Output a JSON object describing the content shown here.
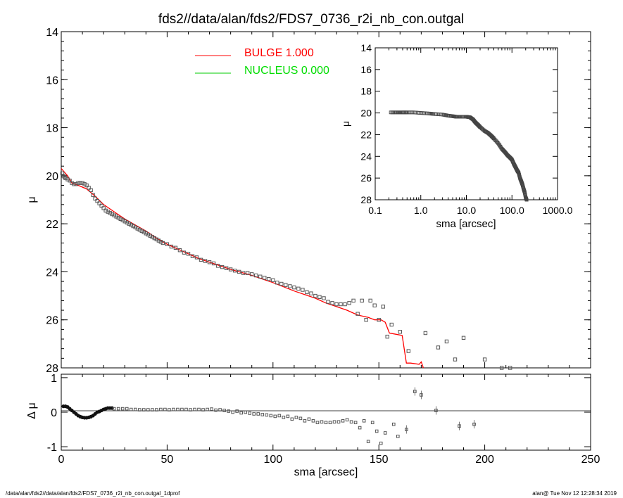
{
  "title": "fds2//data/alan/fds2/FDS7_0736_r2i_nb_con.outgal",
  "footer_left": "/data/alan/fds2//data/alan/fds2/FDS7_0736_r2i_nb_con.outgal_1dprof",
  "footer_right": "alan@  Tue Nov 12 12:28:34 2019",
  "colors": {
    "bulge": "#ff0000",
    "nucleus": "#00cc00",
    "data": "#555555"
  },
  "chart_data": [
    {
      "type": "scatter",
      "name": "main-profile",
      "xlim": [
        0,
        250
      ],
      "ylim": [
        28,
        14
      ],
      "y_inverted": true,
      "xticks": [
        0,
        50,
        100,
        150,
        200,
        250
      ],
      "yticks": [
        14,
        16,
        18,
        20,
        22,
        24,
        26,
        28
      ],
      "xlabel": "sma [arcsec]",
      "ylabel": "μ",
      "legend": [
        {
          "label": "BULGE  1.000",
          "color": "#ff0000"
        },
        {
          "label": "NUCLEUS  0.000",
          "color": "#00cc00"
        }
      ],
      "legend_position": "top-center",
      "data_points": [
        [
          0.5,
          19.9
        ],
        [
          1.0,
          20.0
        ],
        [
          1.5,
          20.05
        ],
        [
          2.0,
          20.1
        ],
        [
          3.0,
          20.15
        ],
        [
          4.0,
          20.2
        ],
        [
          5.0,
          20.3
        ],
        [
          6,
          20.35
        ],
        [
          7,
          20.35
        ],
        [
          8,
          20.3
        ],
        [
          9,
          20.3
        ],
        [
          10,
          20.3
        ],
        [
          11,
          20.35
        ],
        [
          12,
          20.4
        ],
        [
          13,
          20.5
        ],
        [
          14,
          20.6
        ],
        [
          15,
          20.8
        ],
        [
          16,
          20.95
        ],
        [
          17,
          21.05
        ],
        [
          18,
          21.15
        ],
        [
          19,
          21.25
        ],
        [
          20,
          21.35
        ],
        [
          21,
          21.45
        ],
        [
          22,
          21.5
        ],
        [
          23,
          21.55
        ],
        [
          24,
          21.6
        ],
        [
          25,
          21.65
        ],
        [
          26,
          21.7
        ],
        [
          27,
          21.75
        ],
        [
          28,
          21.8
        ],
        [
          29,
          21.85
        ],
        [
          30,
          21.9
        ],
        [
          31,
          21.95
        ],
        [
          32,
          22.0
        ],
        [
          33,
          22.05
        ],
        [
          34,
          22.1
        ],
        [
          35,
          22.15
        ],
        [
          36,
          22.2
        ],
        [
          37,
          22.25
        ],
        [
          38,
          22.3
        ],
        [
          39,
          22.35
        ],
        [
          40,
          22.4
        ],
        [
          41,
          22.45
        ],
        [
          42,
          22.5
        ],
        [
          43,
          22.55
        ],
        [
          44,
          22.6
        ],
        [
          45,
          22.65
        ],
        [
          46,
          22.7
        ],
        [
          47,
          22.75
        ],
        [
          48,
          22.8
        ],
        [
          50,
          22.85
        ],
        [
          52,
          22.95
        ],
        [
          54,
          23.0
        ],
        [
          56,
          23.1
        ],
        [
          58,
          23.2
        ],
        [
          60,
          23.25
        ],
        [
          62,
          23.35
        ],
        [
          64,
          23.4
        ],
        [
          66,
          23.5
        ],
        [
          68,
          23.55
        ],
        [
          70,
          23.6
        ],
        [
          72,
          23.65
        ],
        [
          74,
          23.75
        ],
        [
          76,
          23.8
        ],
        [
          78,
          23.85
        ],
        [
          80,
          23.9
        ],
        [
          82,
          23.95
        ],
        [
          84,
          24.0
        ],
        [
          86,
          24.05
        ],
        [
          88,
          24.05
        ],
        [
          90,
          24.1
        ],
        [
          92,
          24.15
        ],
        [
          94,
          24.2
        ],
        [
          96,
          24.25
        ],
        [
          98,
          24.3
        ],
        [
          100,
          24.35
        ],
        [
          102,
          24.45
        ],
        [
          104,
          24.5
        ],
        [
          106,
          24.55
        ],
        [
          108,
          24.6
        ],
        [
          110,
          24.65
        ],
        [
          112,
          24.7
        ],
        [
          114,
          24.75
        ],
        [
          116,
          24.85
        ],
        [
          118,
          24.9
        ],
        [
          120,
          25.0
        ],
        [
          122,
          25.05
        ],
        [
          124,
          25.1
        ],
        [
          126,
          25.25
        ],
        [
          128,
          25.3
        ],
        [
          130,
          25.35
        ],
        [
          132,
          25.35
        ],
        [
          134,
          25.35
        ],
        [
          136,
          25.3
        ],
        [
          138,
          25.2
        ],
        [
          140,
          25.75
        ],
        [
          142,
          25.2
        ],
        [
          144,
          26.0
        ],
        [
          146,
          25.2
        ],
        [
          148,
          25.4
        ],
        [
          150,
          26.0
        ],
        [
          152,
          25.45
        ],
        [
          154,
          26.7
        ],
        [
          156,
          26.2
        ],
        [
          160,
          26.5
        ],
        [
          164,
          27.3
        ],
        [
          172,
          26.55
        ],
        [
          178,
          27.15
        ],
        [
          182,
          26.9
        ],
        [
          186,
          27.65
        ],
        [
          190,
          26.75
        ],
        [
          200,
          27.65
        ],
        [
          208,
          28.0
        ],
        [
          212,
          28.0
        ]
      ],
      "bulge_model": [
        [
          0,
          19.7
        ],
        [
          1,
          19.8
        ],
        [
          3,
          20.0
        ],
        [
          5,
          20.3
        ],
        [
          8,
          20.4
        ],
        [
          12,
          20.55
        ],
        [
          16,
          20.85
        ],
        [
          20,
          21.2
        ],
        [
          25,
          21.5
        ],
        [
          30,
          21.8
        ],
        [
          35,
          22.05
        ],
        [
          40,
          22.3
        ],
        [
          45,
          22.6
        ],
        [
          50,
          22.85
        ],
        [
          55,
          23.05
        ],
        [
          60,
          23.25
        ],
        [
          65,
          23.45
        ],
        [
          70,
          23.6
        ],
        [
          75,
          23.75
        ],
        [
          80,
          23.9
        ],
        [
          90,
          24.15
        ],
        [
          100,
          24.45
        ],
        [
          110,
          24.8
        ],
        [
          120,
          25.1
        ],
        [
          125,
          25.3
        ],
        [
          130,
          25.45
        ],
        [
          135,
          25.6
        ],
        [
          140,
          25.8
        ],
        [
          145,
          25.9
        ],
        [
          148,
          26.0
        ],
        [
          151,
          26.0
        ],
        [
          153,
          26.1
        ],
        [
          155,
          26.55
        ],
        [
          158,
          26.6
        ],
        [
          161,
          26.65
        ],
        [
          163,
          27.8
        ],
        [
          165,
          27.8
        ],
        [
          169,
          27.85
        ],
        [
          170,
          27.75
        ],
        [
          171,
          28.0
        ]
      ]
    },
    {
      "type": "scatter",
      "name": "residuals",
      "xlim": [
        0,
        250
      ],
      "ylim": [
        -1.1,
        1.1
      ],
      "yticks": [
        -1,
        0,
        1
      ],
      "xticks": [
        0,
        50,
        100,
        150,
        200,
        250
      ],
      "xlabel": "sma [arcsec]",
      "ylabel": "Δ μ",
      "residuals": [
        [
          1,
          0.17
        ],
        [
          2,
          0.17
        ],
        [
          3,
          0.15
        ],
        [
          4,
          0.1
        ],
        [
          5,
          0.05
        ],
        [
          6,
          0.0
        ],
        [
          7,
          -0.05
        ],
        [
          8,
          -0.1
        ],
        [
          9,
          -0.13
        ],
        [
          10,
          -0.15
        ],
        [
          11,
          -0.16
        ],
        [
          12,
          -0.16
        ],
        [
          13,
          -0.15
        ],
        [
          14,
          -0.13
        ],
        [
          15,
          -0.1
        ],
        [
          16,
          -0.05
        ],
        [
          17,
          0.0
        ],
        [
          18,
          0.02
        ],
        [
          19,
          0.05
        ],
        [
          20,
          0.08
        ],
        [
          21,
          0.1
        ],
        [
          22,
          0.12
        ],
        [
          23,
          0.12
        ],
        [
          24,
          0.12
        ],
        [
          25,
          0.1
        ],
        [
          27,
          0.1
        ],
        [
          29,
          0.1
        ],
        [
          31,
          0.1
        ],
        [
          33,
          0.08
        ],
        [
          35,
          0.08
        ],
        [
          37,
          0.07
        ],
        [
          39,
          0.07
        ],
        [
          41,
          0.07
        ],
        [
          43,
          0.07
        ],
        [
          45,
          0.07
        ],
        [
          47,
          0.08
        ],
        [
          49,
          0.08
        ],
        [
          51,
          0.07
        ],
        [
          53,
          0.08
        ],
        [
          55,
          0.08
        ],
        [
          57,
          0.08
        ],
        [
          59,
          0.08
        ],
        [
          61,
          0.07
        ],
        [
          63,
          0.08
        ],
        [
          65,
          0.08
        ],
        [
          67,
          0.07
        ],
        [
          69,
          0.08
        ],
        [
          71,
          0.09
        ],
        [
          73,
          0.06
        ],
        [
          75,
          0.07
        ],
        [
          77,
          0.05
        ],
        [
          79,
          0.03
        ],
        [
          81,
          0.0
        ],
        [
          83,
          0.03
        ],
        [
          85,
          -0.02
        ],
        [
          87,
          0.0
        ],
        [
          89,
          -0.03
        ],
        [
          91,
          -0.05
        ],
        [
          93,
          -0.05
        ],
        [
          95,
          -0.07
        ],
        [
          97,
          -0.08
        ],
        [
          99,
          -0.1
        ],
        [
          101,
          -0.12
        ],
        [
          103,
          -0.1
        ],
        [
          105,
          -0.15
        ],
        [
          107,
          -0.12
        ],
        [
          109,
          -0.2
        ],
        [
          111,
          -0.15
        ],
        [
          113,
          -0.18
        ],
        [
          115,
          -0.25
        ],
        [
          117,
          -0.2
        ],
        [
          119,
          -0.25
        ],
        [
          121,
          -0.3
        ],
        [
          123,
          -0.28
        ],
        [
          125,
          -0.3
        ],
        [
          127,
          -0.3
        ],
        [
          129,
          -0.28
        ],
        [
          131,
          -0.28
        ],
        [
          133,
          -0.25
        ],
        [
          135,
          -0.22
        ],
        [
          137,
          -0.28
        ],
        [
          139,
          -0.3
        ],
        [
          141,
          -0.45
        ],
        [
          143,
          -0.25
        ],
        [
          145,
          -0.85
        ],
        [
          147,
          -0.3
        ],
        [
          149,
          -0.55
        ],
        [
          151,
          -0.9
        ],
        [
          153,
          -0.6
        ],
        [
          157,
          -0.35
        ],
        [
          159,
          -0.7
        ],
        [
          163,
          -0.5
        ],
        [
          167,
          0.6
        ],
        [
          170,
          0.5
        ],
        [
          177,
          0.05
        ],
        [
          188,
          -0.4
        ],
        [
          195,
          -0.35
        ]
      ]
    },
    {
      "type": "scatter",
      "name": "inset-log-profile",
      "x_scale": "log",
      "xlim": [
        0.1,
        1000
      ],
      "ylim": [
        28,
        14
      ],
      "y_inverted": true,
      "xticks": [
        0.1,
        1,
        10,
        100,
        1000
      ],
      "xtick_labels": [
        "0.1",
        "1.0",
        "10.0",
        "100.0",
        "1000.0"
      ],
      "yticks": [
        14,
        16,
        18,
        20,
        22,
        24,
        26,
        28
      ],
      "xlabel": "sma [arcsec]",
      "ylabel": "μ",
      "data_points": [
        [
          0.22,
          19.95
        ],
        [
          0.3,
          19.95
        ],
        [
          0.4,
          19.95
        ],
        [
          0.5,
          19.95
        ],
        [
          0.7,
          19.95
        ],
        [
          1.0,
          20.0
        ],
        [
          1.5,
          20.05
        ],
        [
          2.0,
          20.1
        ],
        [
          3.0,
          20.15
        ],
        [
          4.0,
          20.25
        ],
        [
          5.0,
          20.3
        ],
        [
          6.0,
          20.35
        ],
        [
          8.0,
          20.35
        ],
        [
          10.0,
          20.35
        ],
        [
          12.0,
          20.4
        ],
        [
          14.0,
          20.6
        ],
        [
          16.0,
          20.9
        ],
        [
          18.0,
          21.1
        ],
        [
          20.0,
          21.3
        ],
        [
          25.0,
          21.65
        ],
        [
          30.0,
          21.85
        ],
        [
          35.0,
          22.1
        ],
        [
          40.0,
          22.35
        ],
        [
          50.0,
          22.8
        ],
        [
          60.0,
          23.3
        ],
        [
          70.0,
          23.6
        ],
        [
          80.0,
          23.9
        ],
        [
          90.0,
          24.1
        ],
        [
          100.0,
          24.3
        ],
        [
          110.0,
          24.7
        ],
        [
          120.0,
          25.0
        ],
        [
          130.0,
          25.3
        ],
        [
          140.0,
          25.5
        ],
        [
          150.0,
          26.0
        ],
        [
          160.0,
          26.3
        ],
        [
          170.0,
          26.6
        ],
        [
          180.0,
          27.0
        ],
        [
          190.0,
          27.3
        ],
        [
          200.0,
          27.8
        ],
        [
          210.0,
          28.0
        ]
      ]
    }
  ]
}
